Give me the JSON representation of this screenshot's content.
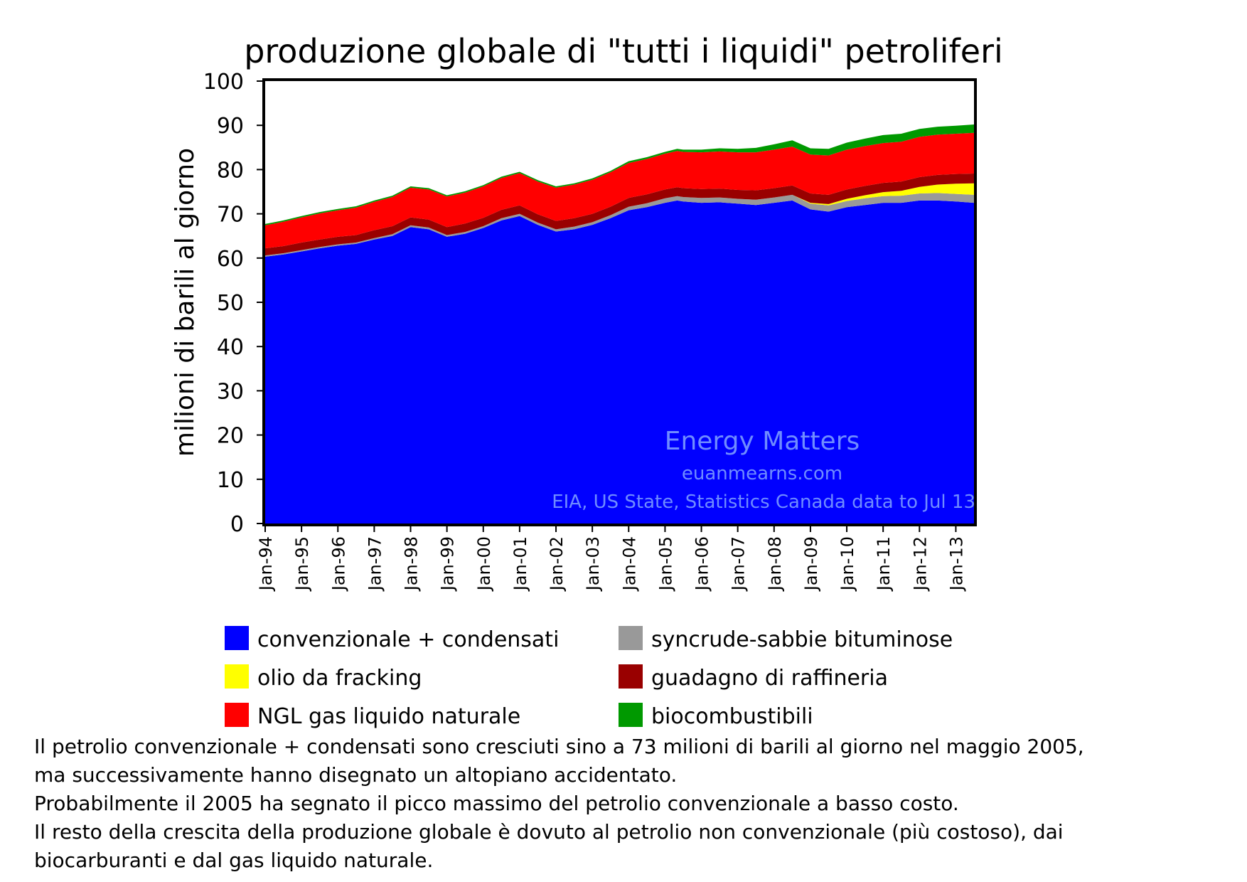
{
  "chart_data": {
    "type": "area",
    "stacked": true,
    "title": "produzione globale di \"tutti i liquidi\" petroliferi",
    "ylabel": "milioni di barili al giorno",
    "xlabel": "",
    "ylim": [
      0,
      100
    ],
    "yticks": [
      0,
      10,
      20,
      30,
      40,
      50,
      60,
      70,
      80,
      90,
      100
    ],
    "xticks": [
      "Jan-94",
      "Jan-95",
      "Jan-96",
      "Jan-97",
      "Jan-98",
      "Jan-99",
      "Jan-00",
      "Jan-01",
      "Jan-02",
      "Jan-03",
      "Jan-04",
      "Jan-05",
      "Jan-06",
      "Jan-07",
      "Jan-08",
      "Jan-09",
      "Jan-10",
      "Jan-11",
      "Jan-12",
      "Jan-13"
    ],
    "xrange": [
      "1994-01",
      "2013-07"
    ],
    "x": [
      "1994-01",
      "1994-07",
      "1995-01",
      "1995-07",
      "1996-01",
      "1996-07",
      "1997-01",
      "1997-07",
      "1998-01",
      "1998-07",
      "1999-01",
      "1999-07",
      "2000-01",
      "2000-07",
      "2001-01",
      "2001-07",
      "2002-01",
      "2002-07",
      "2003-01",
      "2003-07",
      "2004-01",
      "2004-07",
      "2005-01",
      "2005-05",
      "2005-07",
      "2006-01",
      "2006-07",
      "2007-01",
      "2007-07",
      "2008-01",
      "2008-07",
      "2009-01",
      "2009-07",
      "2010-01",
      "2010-07",
      "2011-01",
      "2011-07",
      "2012-01",
      "2012-07",
      "2013-01",
      "2013-07"
    ],
    "series": [
      {
        "name": "convenzionale + condensati",
        "color": "#0000ff",
        "values": [
          60.3,
          60.8,
          61.5,
          62.2,
          62.8,
          63.2,
          64.2,
          65.0,
          67.0,
          66.5,
          64.8,
          65.5,
          66.8,
          68.5,
          69.5,
          67.5,
          66.0,
          66.5,
          67.5,
          69.0,
          70.8,
          71.5,
          72.5,
          73.0,
          72.8,
          72.5,
          72.6,
          72.3,
          72.0,
          72.5,
          73.0,
          71.0,
          70.5,
          71.5,
          72.0,
          72.5,
          72.5,
          73.0,
          73.0,
          72.8,
          72.5
        ]
      },
      {
        "name": "syncrude-sabbie bituminose",
        "color": "#999999",
        "values": [
          0.3,
          0.3,
          0.3,
          0.3,
          0.3,
          0.3,
          0.3,
          0.4,
          0.4,
          0.4,
          0.4,
          0.4,
          0.4,
          0.5,
          0.5,
          0.5,
          0.5,
          0.6,
          0.6,
          0.7,
          0.8,
          0.9,
          1.0,
          1.0,
          1.0,
          1.1,
          1.1,
          1.1,
          1.2,
          1.2,
          1.3,
          1.3,
          1.4,
          1.4,
          1.5,
          1.5,
          1.6,
          1.6,
          1.7,
          1.7,
          1.8
        ]
      },
      {
        "name": "olio da fracking",
        "color": "#ffff00",
        "values": [
          0,
          0,
          0,
          0,
          0,
          0,
          0,
          0,
          0,
          0,
          0,
          0,
          0,
          0,
          0,
          0,
          0,
          0,
          0,
          0,
          0,
          0,
          0,
          0,
          0,
          0,
          0,
          0,
          0,
          0,
          0,
          0.2,
          0.3,
          0.5,
          0.7,
          0.9,
          1.1,
          1.5,
          1.9,
          2.3,
          2.6
        ]
      },
      {
        "name": "guadagno di raffineria",
        "color": "#990000",
        "values": [
          1.6,
          1.6,
          1.7,
          1.7,
          1.7,
          1.7,
          1.8,
          1.8,
          1.8,
          1.8,
          1.8,
          1.9,
          1.9,
          1.9,
          1.9,
          1.9,
          1.9,
          1.9,
          1.9,
          1.9,
          2.0,
          2.0,
          2.0,
          2.0,
          2.0,
          2.0,
          2.0,
          2.0,
          2.1,
          2.1,
          2.1,
          2.1,
          2.1,
          2.1,
          2.1,
          2.1,
          2.1,
          2.2,
          2.2,
          2.2,
          2.2
        ]
      },
      {
        "name": "NGL gas liquido naturale",
        "color": "#ff0000",
        "values": [
          5.2,
          5.5,
          5.7,
          5.9,
          6.0,
          6.2,
          6.4,
          6.6,
          6.7,
          6.8,
          6.9,
          7.0,
          7.1,
          7.2,
          7.3,
          7.4,
          7.5,
          7.6,
          7.7,
          7.8,
          7.9,
          8.0,
          8.1,
          8.2,
          8.2,
          8.3,
          8.4,
          8.5,
          8.6,
          8.7,
          8.8,
          8.8,
          8.9,
          9.0,
          9.0,
          9.0,
          9.0,
          9.1,
          9.1,
          9.1,
          9.2
        ]
      },
      {
        "name": "biocombustibili",
        "color": "#009900",
        "values": [
          0.3,
          0.3,
          0.3,
          0.3,
          0.3,
          0.3,
          0.3,
          0.3,
          0.3,
          0.3,
          0.3,
          0.3,
          0.3,
          0.3,
          0.3,
          0.3,
          0.3,
          0.3,
          0.3,
          0.3,
          0.4,
          0.4,
          0.4,
          0.5,
          0.5,
          0.6,
          0.7,
          0.8,
          1.0,
          1.2,
          1.4,
          1.4,
          1.5,
          1.6,
          1.7,
          1.8,
          1.8,
          1.8,
          1.8,
          1.8,
          1.9
        ]
      }
    ],
    "watermark": [
      "Energy Matters",
      "euanmearns.com",
      "EIA, US State, Statistics Canada data to Jul 13"
    ],
    "legend_position": "bottom",
    "grid": false
  },
  "caption": [
    "Il petrolio convenzionale + condensati sono cresciuti sino a 73 milioni di barili al giorno nel maggio 2005,",
    "ma successivamente hanno disegnato un altopiano accidentato.",
    "Probabilmente il 2005 ha segnato il picco massimo del petrolio convenzionale a basso costo.",
    "Il resto della crescita della produzione globale è  dovuto al petrolio non convenzionale (più costoso), dai",
    "biocarburanti e dal gas liquido naturale."
  ]
}
